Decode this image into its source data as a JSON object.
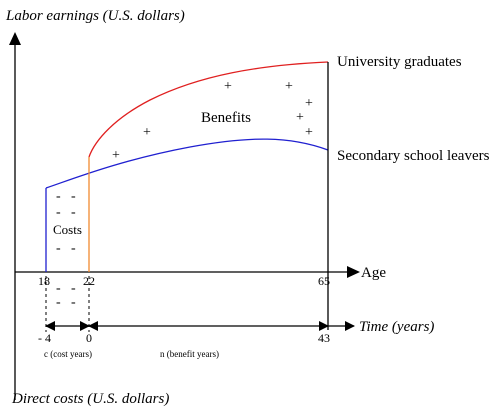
{
  "labels": {
    "y_top": "Labor earnings (U.S. dollars)",
    "y_bottom": "Direct costs (U.S. dollars)",
    "age_axis": "Age",
    "time_axis": "Time (years)",
    "university": "University graduates",
    "secondary": "Secondary school leavers",
    "benefits": "Benefits",
    "costs": "Costs",
    "cost_years": "c (cost years)",
    "benefit_years": "n (benefit years)"
  },
  "ticks": {
    "age_18": "18",
    "age_22": "22",
    "age_65": "65",
    "time_minus4": "- 4",
    "time_0": "0",
    "time_43": "43"
  },
  "marks": {
    "plus": "+",
    "minus": "-"
  },
  "colors": {
    "university_curve": "#e02020",
    "secondary_curve": "#2020d0",
    "entry_line": "#f08a30",
    "axis": "#000000"
  }
}
